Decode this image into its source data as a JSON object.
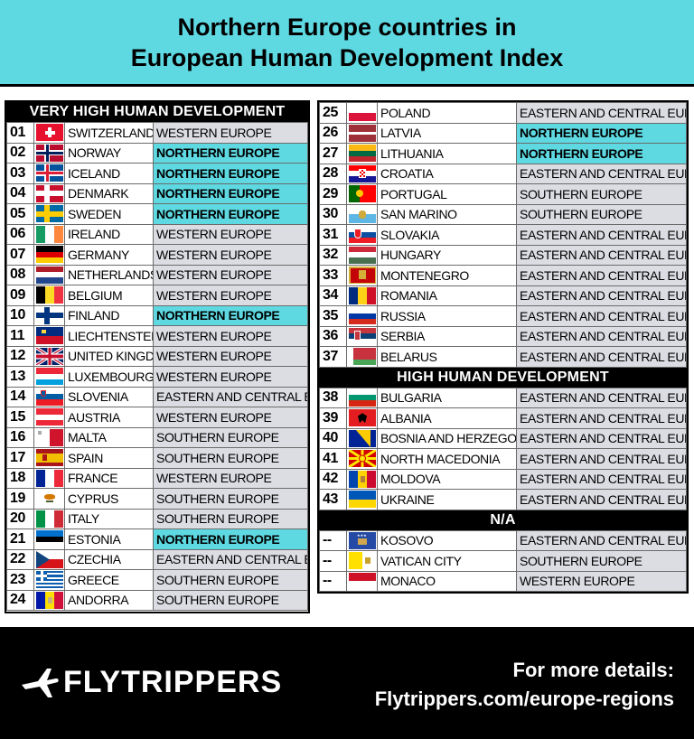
{
  "header": {
    "line1": "Northern Europe countries in",
    "line2": "European Human Development Index"
  },
  "sections": {
    "very_high": "VERY HIGH HUMAN DEVELOPMENT",
    "high": "HIGH HUMAN DEVELOPMENT",
    "na": "N/A"
  },
  "left_rows": [
    {
      "rank": "01",
      "country": "SWITZERLAND",
      "region": "WESTERN EUROPE",
      "ne": false,
      "flag": "ch"
    },
    {
      "rank": "02",
      "country": "NORWAY",
      "region": "NORTHERN EUROPE",
      "ne": true,
      "flag": "no"
    },
    {
      "rank": "03",
      "country": "ICELAND",
      "region": "NORTHERN EUROPE",
      "ne": true,
      "flag": "is"
    },
    {
      "rank": "04",
      "country": "DENMARK",
      "region": "NORTHERN EUROPE",
      "ne": true,
      "flag": "dk"
    },
    {
      "rank": "05",
      "country": "SWEDEN",
      "region": "NORTHERN EUROPE",
      "ne": true,
      "flag": "se"
    },
    {
      "rank": "06",
      "country": "IRELAND",
      "region": "WESTERN EUROPE",
      "ne": false,
      "flag": "ie"
    },
    {
      "rank": "07",
      "country": "GERMANY",
      "region": "WESTERN EUROPE",
      "ne": false,
      "flag": "de"
    },
    {
      "rank": "08",
      "country": "NETHERLANDS",
      "region": "WESTERN EUROPE",
      "ne": false,
      "flag": "nl"
    },
    {
      "rank": "09",
      "country": "BELGIUM",
      "region": "WESTERN EUROPE",
      "ne": false,
      "flag": "be"
    },
    {
      "rank": "10",
      "country": "FINLAND",
      "region": "NORTHERN EUROPE",
      "ne": true,
      "flag": "fi"
    },
    {
      "rank": "11",
      "country": "LIECHTENSTEIN",
      "region": "WESTERN EUROPE",
      "ne": false,
      "flag": "li"
    },
    {
      "rank": "12",
      "country": "UNITED KINGDOM",
      "region": "WESTERN EUROPE",
      "ne": false,
      "flag": "gb"
    },
    {
      "rank": "13",
      "country": "LUXEMBOURG",
      "region": "WESTERN EUROPE",
      "ne": false,
      "flag": "lu"
    },
    {
      "rank": "14",
      "country": "SLOVENIA",
      "region": "EASTERN AND CENTRAL EUROPE",
      "ne": false,
      "flag": "si"
    },
    {
      "rank": "15",
      "country": "AUSTRIA",
      "region": "WESTERN EUROPE",
      "ne": false,
      "flag": "at"
    },
    {
      "rank": "16",
      "country": "MALTA",
      "region": "SOUTHERN EUROPE",
      "ne": false,
      "flag": "mt"
    },
    {
      "rank": "17",
      "country": "SPAIN",
      "region": "SOUTHERN EUROPE",
      "ne": false,
      "flag": "es"
    },
    {
      "rank": "18",
      "country": "FRANCE",
      "region": "WESTERN EUROPE",
      "ne": false,
      "flag": "fr"
    },
    {
      "rank": "19",
      "country": "CYPRUS",
      "region": "SOUTHERN EUROPE",
      "ne": false,
      "flag": "cy"
    },
    {
      "rank": "20",
      "country": "ITALY",
      "region": "SOUTHERN EUROPE",
      "ne": false,
      "flag": "it"
    },
    {
      "rank": "21",
      "country": "ESTONIA",
      "region": "NORTHERN EUROPE",
      "ne": true,
      "flag": "ee"
    },
    {
      "rank": "22",
      "country": "CZECHIA",
      "region": "EASTERN AND CENTRAL EUROPE",
      "ne": false,
      "flag": "cz"
    },
    {
      "rank": "23",
      "country": "GREECE",
      "region": "SOUTHERN EUROPE",
      "ne": false,
      "flag": "gr"
    },
    {
      "rank": "24",
      "country": "ANDORRA",
      "region": "SOUTHERN EUROPE",
      "ne": false,
      "flag": "ad"
    }
  ],
  "right_rows_1": [
    {
      "rank": "25",
      "country": "POLAND",
      "region": "EASTERN AND CENTRAL EUROPE",
      "ne": false,
      "flag": "pl"
    },
    {
      "rank": "26",
      "country": "LATVIA",
      "region": "NORTHERN EUROPE",
      "ne": true,
      "flag": "lv"
    },
    {
      "rank": "27",
      "country": "LITHUANIA",
      "region": "NORTHERN EUROPE",
      "ne": true,
      "flag": "lt"
    },
    {
      "rank": "28",
      "country": "CROATIA",
      "region": "EASTERN AND CENTRAL EUROPE",
      "ne": false,
      "flag": "hr"
    },
    {
      "rank": "29",
      "country": "PORTUGAL",
      "region": "SOUTHERN EUROPE",
      "ne": false,
      "flag": "pt"
    },
    {
      "rank": "30",
      "country": "SAN MARINO",
      "region": "SOUTHERN EUROPE",
      "ne": false,
      "flag": "sm"
    },
    {
      "rank": "31",
      "country": "SLOVAKIA",
      "region": "EASTERN AND CENTRAL EUROPE",
      "ne": false,
      "flag": "sk"
    },
    {
      "rank": "32",
      "country": "HUNGARY",
      "region": "EASTERN AND CENTRAL EUROPE",
      "ne": false,
      "flag": "hu"
    },
    {
      "rank": "33",
      "country": "MONTENEGRO",
      "region": "EASTERN AND CENTRAL EUROPE",
      "ne": false,
      "flag": "me"
    },
    {
      "rank": "34",
      "country": "ROMANIA",
      "region": "EASTERN AND CENTRAL EUROPE",
      "ne": false,
      "flag": "ro"
    },
    {
      "rank": "35",
      "country": "RUSSIA",
      "region": "EASTERN AND CENTRAL EUROPE",
      "ne": false,
      "flag": "ru"
    },
    {
      "rank": "36",
      "country": "SERBIA",
      "region": "EASTERN AND CENTRAL EUROPE",
      "ne": false,
      "flag": "rs"
    },
    {
      "rank": "37",
      "country": "BELARUS",
      "region": "EASTERN AND CENTRAL EUROPE",
      "ne": false,
      "flag": "by"
    }
  ],
  "right_rows_2": [
    {
      "rank": "38",
      "country": "BULGARIA",
      "region": "EASTERN AND CENTRAL EUROPE",
      "ne": false,
      "flag": "bg"
    },
    {
      "rank": "39",
      "country": "ALBANIA",
      "region": "EASTERN AND CENTRAL EUROPE",
      "ne": false,
      "flag": "al"
    },
    {
      "rank": "40",
      "country": "BOSNIA AND HERZEGOVINA",
      "region": "EASTERN AND CENTRAL EUROPE",
      "ne": false,
      "flag": "ba"
    },
    {
      "rank": "41",
      "country": "NORTH MACEDONIA",
      "region": "EASTERN AND CENTRAL EUROPE",
      "ne": false,
      "flag": "mk"
    },
    {
      "rank": "42",
      "country": "MOLDOVA",
      "region": "EASTERN AND CENTRAL EUROPE",
      "ne": false,
      "flag": "md"
    },
    {
      "rank": "43",
      "country": "UKRAINE",
      "region": "EASTERN AND CENTRAL EUROPE",
      "ne": false,
      "flag": "ua"
    }
  ],
  "right_rows_3": [
    {
      "rank": "--",
      "country": "KOSOVO",
      "region": "EASTERN AND CENTRAL EUROPE",
      "ne": false,
      "flag": "xk"
    },
    {
      "rank": "--",
      "country": "VATICAN CITY",
      "region": "SOUTHERN EUROPE",
      "ne": false,
      "flag": "va"
    },
    {
      "rank": "--",
      "country": "MONACO",
      "region": "WESTERN EUROPE",
      "ne": false,
      "flag": "mc"
    }
  ],
  "footer": {
    "logo": "FLYTRIPPERS",
    "line1": "For more details:",
    "line2": "Flytrippers.com/europe-regions"
  },
  "colors": {
    "northern_highlight": "#5ed9e2",
    "region_cell": "#dcdde3",
    "header_bg": "#5ed9e2",
    "footer_bg": "#000000"
  }
}
